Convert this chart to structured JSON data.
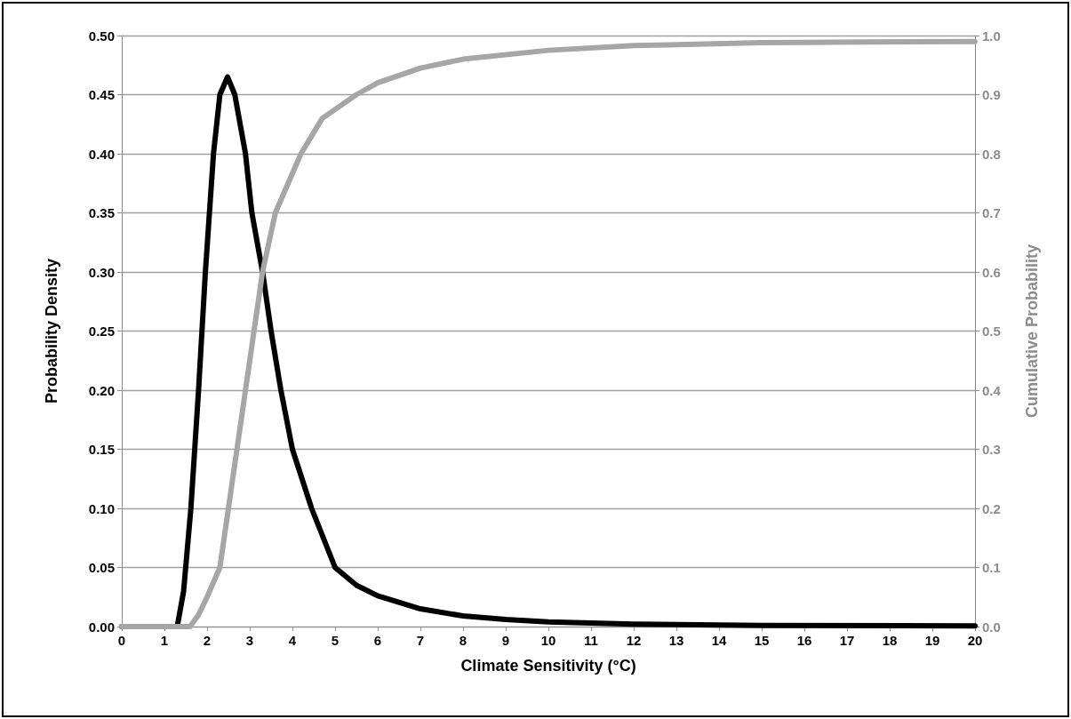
{
  "chart_data": {
    "type": "line",
    "xlabel": "Climate Sensitivity (°C)",
    "ylabel": "Probability Density",
    "y2label": "Cumulative Probability",
    "xlim": [
      0,
      20
    ],
    "xticks": [
      0,
      1,
      2,
      3,
      4,
      5,
      6,
      7,
      8,
      9,
      10,
      11,
      12,
      13,
      14,
      15,
      16,
      17,
      18,
      19,
      20
    ],
    "ylim": [
      0,
      0.5
    ],
    "yticks": [
      {
        "value": 0,
        "label": "0.00"
      },
      {
        "value": 0.05,
        "label": "0.05"
      },
      {
        "value": 0.1,
        "label": "0.10"
      },
      {
        "value": 0.15,
        "label": "0.15"
      },
      {
        "value": 0.2,
        "label": "0.20"
      },
      {
        "value": 0.25,
        "label": "0.25"
      },
      {
        "value": 0.3,
        "label": "0.30"
      },
      {
        "value": 0.35,
        "label": "0.35"
      },
      {
        "value": 0.4,
        "label": "0.40"
      },
      {
        "value": 0.45,
        "label": "0.45"
      },
      {
        "value": 0.5,
        "label": "0.50"
      }
    ],
    "y2lim": [
      0,
      1
    ],
    "y2ticks": [
      {
        "value": 0,
        "label": "0.0"
      },
      0.1,
      0.2,
      0.3,
      0.4,
      0.5,
      0.6,
      0.7,
      0.8,
      0.9,
      {
        "value": 1,
        "label": "1.0"
      }
    ],
    "grid": "y",
    "marker": "none",
    "line_style": "solid",
    "series": [
      {
        "color": "#000000",
        "x": [
          0,
          1.0,
          1.3,
          1.45,
          1.62,
          1.8,
          1.96,
          2.15,
          2.3,
          2.48,
          2.65,
          2.9,
          3.05,
          3.3,
          3.5,
          3.73,
          4.0,
          4.45,
          5.0,
          5.5,
          6.0,
          7.0,
          8.0,
          9.0,
          10.0,
          12.0,
          15.0,
          20.0
        ],
        "values": [
          0,
          0,
          0,
          0.03,
          0.1,
          0.2,
          0.3,
          0.4,
          0.45,
          0.465,
          0.45,
          0.4,
          0.35,
          0.3,
          0.25,
          0.2,
          0.15,
          0.1,
          0.05,
          0.035,
          0.026,
          0.015,
          0.009,
          0.006,
          0.004,
          0.002,
          0.001,
          0.0005
        ]
      },
      {
        "color": "#a6a6a6",
        "axis": "y2",
        "x": [
          0,
          1.0,
          1.6,
          1.8,
          2.0,
          2.3,
          2.5,
          2.8,
          3.1,
          3.3,
          3.6,
          4.2,
          4.7,
          5.5,
          6.0,
          7.0,
          8.0,
          10.0,
          12.0,
          15.0,
          20.0
        ],
        "values": [
          0,
          0,
          0,
          0.02,
          0.05,
          0.1,
          0.2,
          0.35,
          0.5,
          0.6,
          0.7,
          0.8,
          0.86,
          0.9,
          0.92,
          0.945,
          0.96,
          0.975,
          0.983,
          0.988,
          0.99
        ]
      }
    ]
  }
}
